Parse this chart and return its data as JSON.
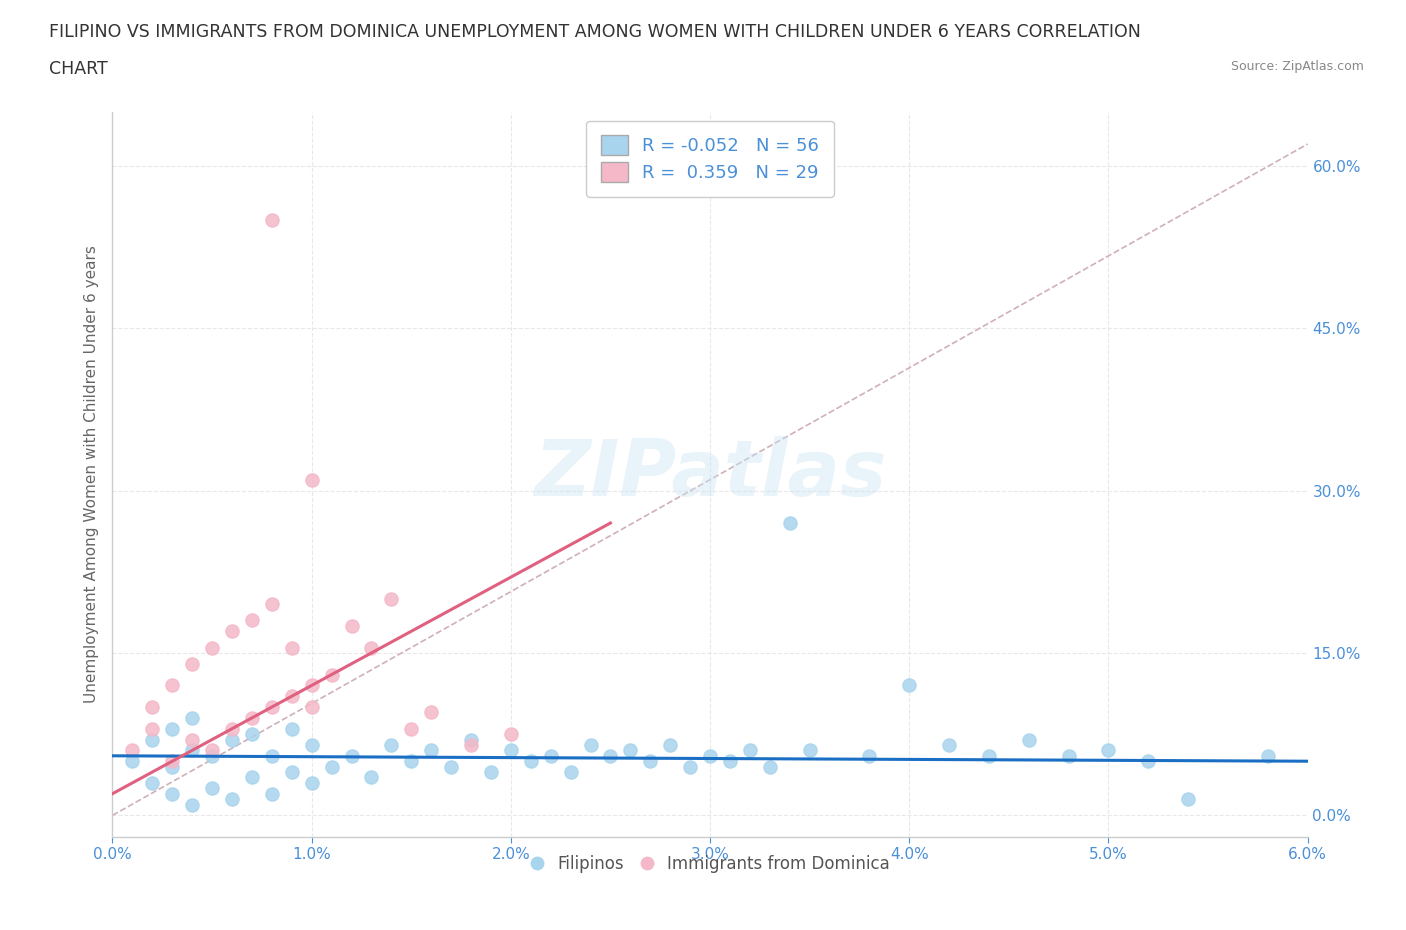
{
  "title_line1": "FILIPINO VS IMMIGRANTS FROM DOMINICA UNEMPLOYMENT AMONG WOMEN WITH CHILDREN UNDER 6 YEARS CORRELATION",
  "title_line2": "CHART",
  "source": "Source: ZipAtlas.com",
  "ylabel": "Unemployment Among Women with Children Under 6 years",
  "xlim": [
    0.0,
    0.06
  ],
  "ylim": [
    -0.02,
    0.65
  ],
  "xticks": [
    0.0,
    0.01,
    0.02,
    0.03,
    0.04,
    0.05,
    0.06
  ],
  "xticklabels": [
    "0.0%",
    "1.0%",
    "2.0%",
    "3.0%",
    "4.0%",
    "5.0%",
    "6.0%"
  ],
  "yticks_right": [
    0.0,
    0.15,
    0.3,
    0.45,
    0.6
  ],
  "yticklabels_right": [
    "0.0%",
    "15.0%",
    "30.0%",
    "45.0%",
    "60.0%"
  ],
  "blue_dot_color": "#a8d4ed",
  "pink_dot_color": "#f4b8c8",
  "blue_line_color": "#1a6fc4",
  "pink_line_color": "#e06080",
  "gray_line_color": "#d0b0b8",
  "R_blue": -0.052,
  "N_blue": 56,
  "R_pink": 0.359,
  "N_pink": 29,
  "legend_label_blue": "Filipinos",
  "legend_label_pink": "Immigrants from Dominica",
  "watermark": "ZIPatlas",
  "background_color": "#ffffff",
  "grid_color": "#e8e8e8",
  "axis_color": "#4a90d9",
  "seed": 42,
  "blue_x": [
    0.001,
    0.002,
    0.002,
    0.003,
    0.003,
    0.003,
    0.004,
    0.004,
    0.004,
    0.005,
    0.005,
    0.006,
    0.006,
    0.007,
    0.007,
    0.008,
    0.008,
    0.009,
    0.009,
    0.01,
    0.01,
    0.011,
    0.012,
    0.013,
    0.014,
    0.015,
    0.016,
    0.017,
    0.018,
    0.019,
    0.02,
    0.021,
    0.022,
    0.023,
    0.024,
    0.025,
    0.026,
    0.027,
    0.028,
    0.029,
    0.03,
    0.031,
    0.032,
    0.033,
    0.034,
    0.035,
    0.038,
    0.04,
    0.042,
    0.044,
    0.046,
    0.048,
    0.05,
    0.052,
    0.054,
    0.058
  ],
  "blue_y": [
    0.05,
    0.03,
    0.07,
    0.02,
    0.045,
    0.08,
    0.01,
    0.06,
    0.09,
    0.025,
    0.055,
    0.015,
    0.07,
    0.035,
    0.075,
    0.02,
    0.055,
    0.04,
    0.08,
    0.03,
    0.065,
    0.045,
    0.055,
    0.035,
    0.065,
    0.05,
    0.06,
    0.045,
    0.07,
    0.04,
    0.06,
    0.05,
    0.055,
    0.04,
    0.065,
    0.055,
    0.06,
    0.05,
    0.065,
    0.045,
    0.055,
    0.05,
    0.06,
    0.045,
    0.27,
    0.06,
    0.055,
    0.12,
    0.065,
    0.055,
    0.07,
    0.055,
    0.06,
    0.05,
    0.015,
    0.055
  ],
  "pink_x": [
    0.008,
    0.001,
    0.002,
    0.002,
    0.003,
    0.003,
    0.004,
    0.004,
    0.005,
    0.005,
    0.006,
    0.006,
    0.007,
    0.007,
    0.008,
    0.008,
    0.009,
    0.009,
    0.01,
    0.01,
    0.011,
    0.012,
    0.013,
    0.014,
    0.015,
    0.016,
    0.018,
    0.02,
    0.01
  ],
  "pink_y": [
    0.55,
    0.06,
    0.08,
    0.1,
    0.05,
    0.12,
    0.07,
    0.14,
    0.06,
    0.155,
    0.08,
    0.17,
    0.09,
    0.18,
    0.1,
    0.195,
    0.11,
    0.155,
    0.12,
    0.31,
    0.13,
    0.175,
    0.155,
    0.2,
    0.08,
    0.095,
    0.065,
    0.075,
    0.1
  ],
  "blue_trend_x": [
    0.0,
    0.06
  ],
  "blue_trend_y": [
    0.055,
    0.05
  ],
  "pink_trend_x": [
    0.0,
    0.025
  ],
  "pink_trend_y": [
    0.02,
    0.27
  ],
  "gray_trend_x": [
    0.0,
    0.06
  ],
  "gray_trend_y": [
    0.0,
    0.62
  ]
}
